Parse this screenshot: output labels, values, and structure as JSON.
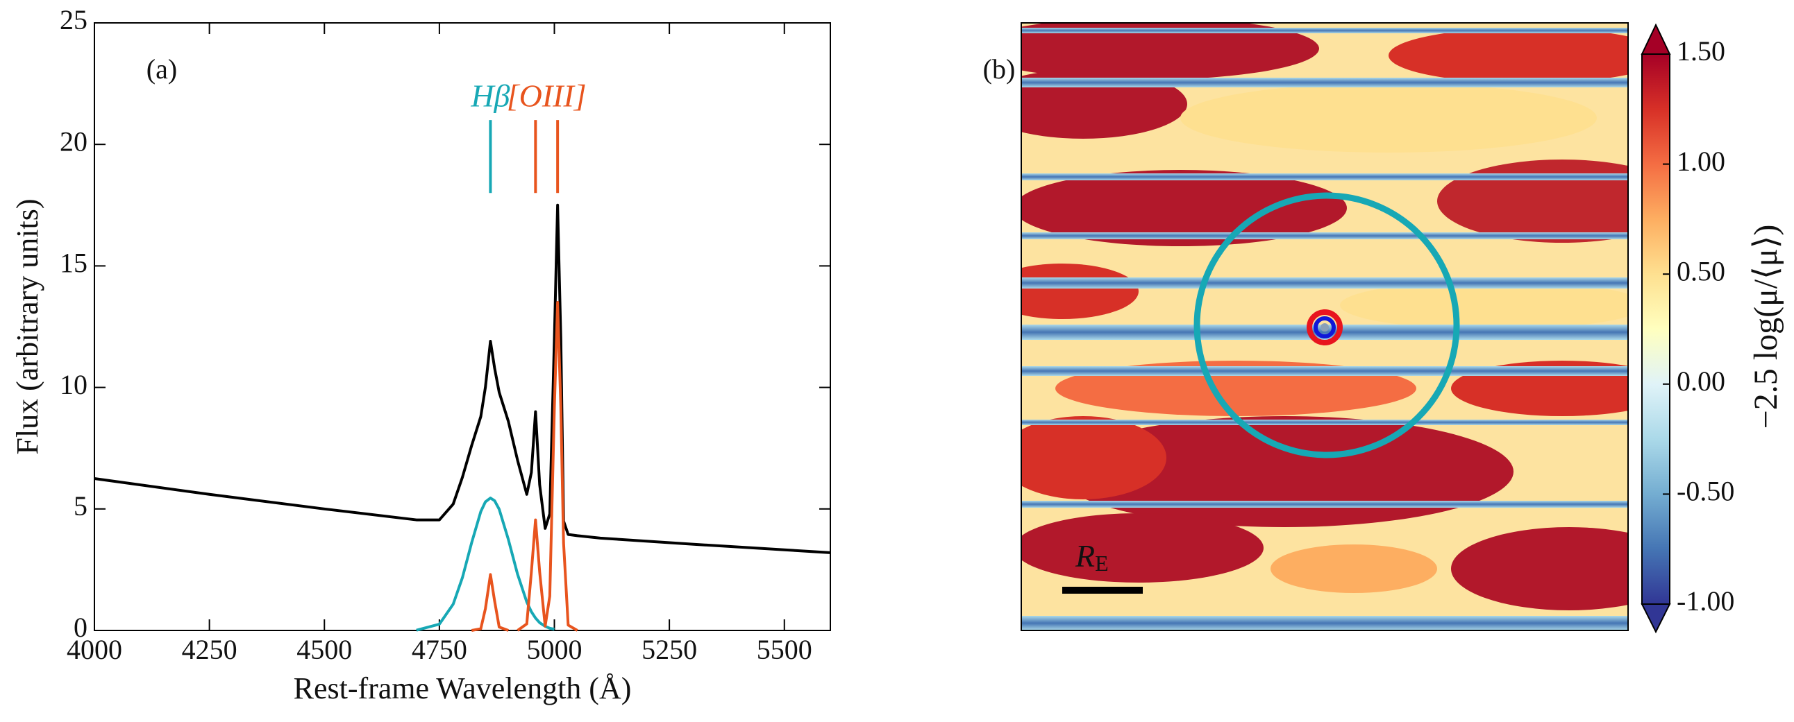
{
  "chart_data": [
    {
      "type": "line",
      "panel_label": "(a)",
      "xlabel": "Rest-frame Wavelength (Å)",
      "ylabel": "Flux (arbitrary units)",
      "x": [
        4000,
        4250,
        4500,
        4700,
        4750,
        4780,
        4800,
        4820,
        4840,
        4850,
        4861,
        4870,
        4880,
        4900,
        4920,
        4940,
        4950,
        4959,
        4968,
        4980,
        4990,
        5000,
        5007,
        5014,
        5020,
        5030,
        5050,
        5100,
        5300,
        5600
      ],
      "series": [
        {
          "color": "#000000",
          "values": [
            6.25,
            5.6,
            5.0,
            4.55,
            4.55,
            5.2,
            6.3,
            7.6,
            8.8,
            10.0,
            11.9,
            10.8,
            9.8,
            8.6,
            7.0,
            5.6,
            6.5,
            9.0,
            6.0,
            4.2,
            4.8,
            12.0,
            17.5,
            12.0,
            4.5,
            3.95,
            3.9,
            3.8,
            3.55,
            3.2
          ]
        },
        {
          "color": "#17a8b5",
          "values": [
            null,
            null,
            null,
            0.01,
            0.26,
            1.08,
            2.17,
            3.6,
            4.89,
            5.29,
            5.45,
            5.34,
            4.99,
            3.74,
            2.31,
            1.17,
            0.77,
            0.51,
            0.32,
            0.17,
            0.09,
            0.05,
            null,
            null,
            null,
            null,
            null,
            null,
            null,
            null
          ]
        },
        {
          "color": "#e8541e",
          "values": [
            null,
            null,
            null,
            null,
            null,
            null,
            null,
            0,
            0.07,
            0.89,
            2.3,
            1.22,
            0.14,
            0,
            null,
            null,
            null,
            null,
            null,
            null,
            null,
            null,
            null,
            null,
            null,
            null,
            null,
            null,
            null,
            null
          ]
        },
        {
          "color": "#e8541e",
          "values": [
            null,
            null,
            null,
            null,
            null,
            null,
            null,
            null,
            null,
            null,
            null,
            null,
            null,
            null,
            0,
            0.27,
            2.41,
            4.55,
            2.41,
            0.18,
            1.41,
            9.2,
            13.5,
            9.2,
            3.6,
            0.22,
            0,
            null,
            null,
            null
          ]
        }
      ],
      "xlim": [
        4000,
        5600
      ],
      "xticks": [
        4000,
        4250,
        4500,
        4750,
        5000,
        5250,
        5500
      ],
      "ylim": [
        0,
        25
      ],
      "yticks": [
        0,
        5,
        10,
        15,
        20,
        25
      ],
      "line_markers": [
        {
          "x": 4861,
          "y": [
            18,
            21
          ],
          "color": "#17a8b5"
        },
        {
          "x": 4959,
          "y": [
            18,
            21
          ],
          "color": "#e8541e"
        },
        {
          "x": 5007,
          "y": [
            18,
            21
          ],
          "color": "#e8541e"
        }
      ],
      "annotations": [
        {
          "text": "Hβ",
          "color": "#17a8b5"
        },
        {
          "text": "[OIII]",
          "color": "#e8541e"
        }
      ]
    },
    {
      "type": "heatmap",
      "panel_label": "(b)",
      "scale_bar": {
        "label": "R",
        "subscript": "E"
      },
      "colorbar": {
        "label": "−2.5 log(μ/⟨μ⟩)",
        "lim": [
          -1,
          1.5
        ],
        "extend": "both",
        "colormap": [
          "#313695",
          "#4575b4",
          "#74add1",
          "#abd9e9",
          "#e0f3f8",
          "#ffffbf",
          "#fee090",
          "#fdae61",
          "#f46d43",
          "#d73027",
          "#a50026"
        ],
        "ticks": [
          {
            "value": 1.5,
            "label": "1.50"
          },
          {
            "value": 1.0,
            "label": "1.00"
          },
          {
            "value": 0.5,
            "label": "0.50"
          },
          {
            "value": 0.0,
            "label": "0.00"
          },
          {
            "value": -0.5,
            "label": "-0.50"
          },
          {
            "value": -1.0,
            "label": "-1.00"
          }
        ]
      }
    }
  ]
}
